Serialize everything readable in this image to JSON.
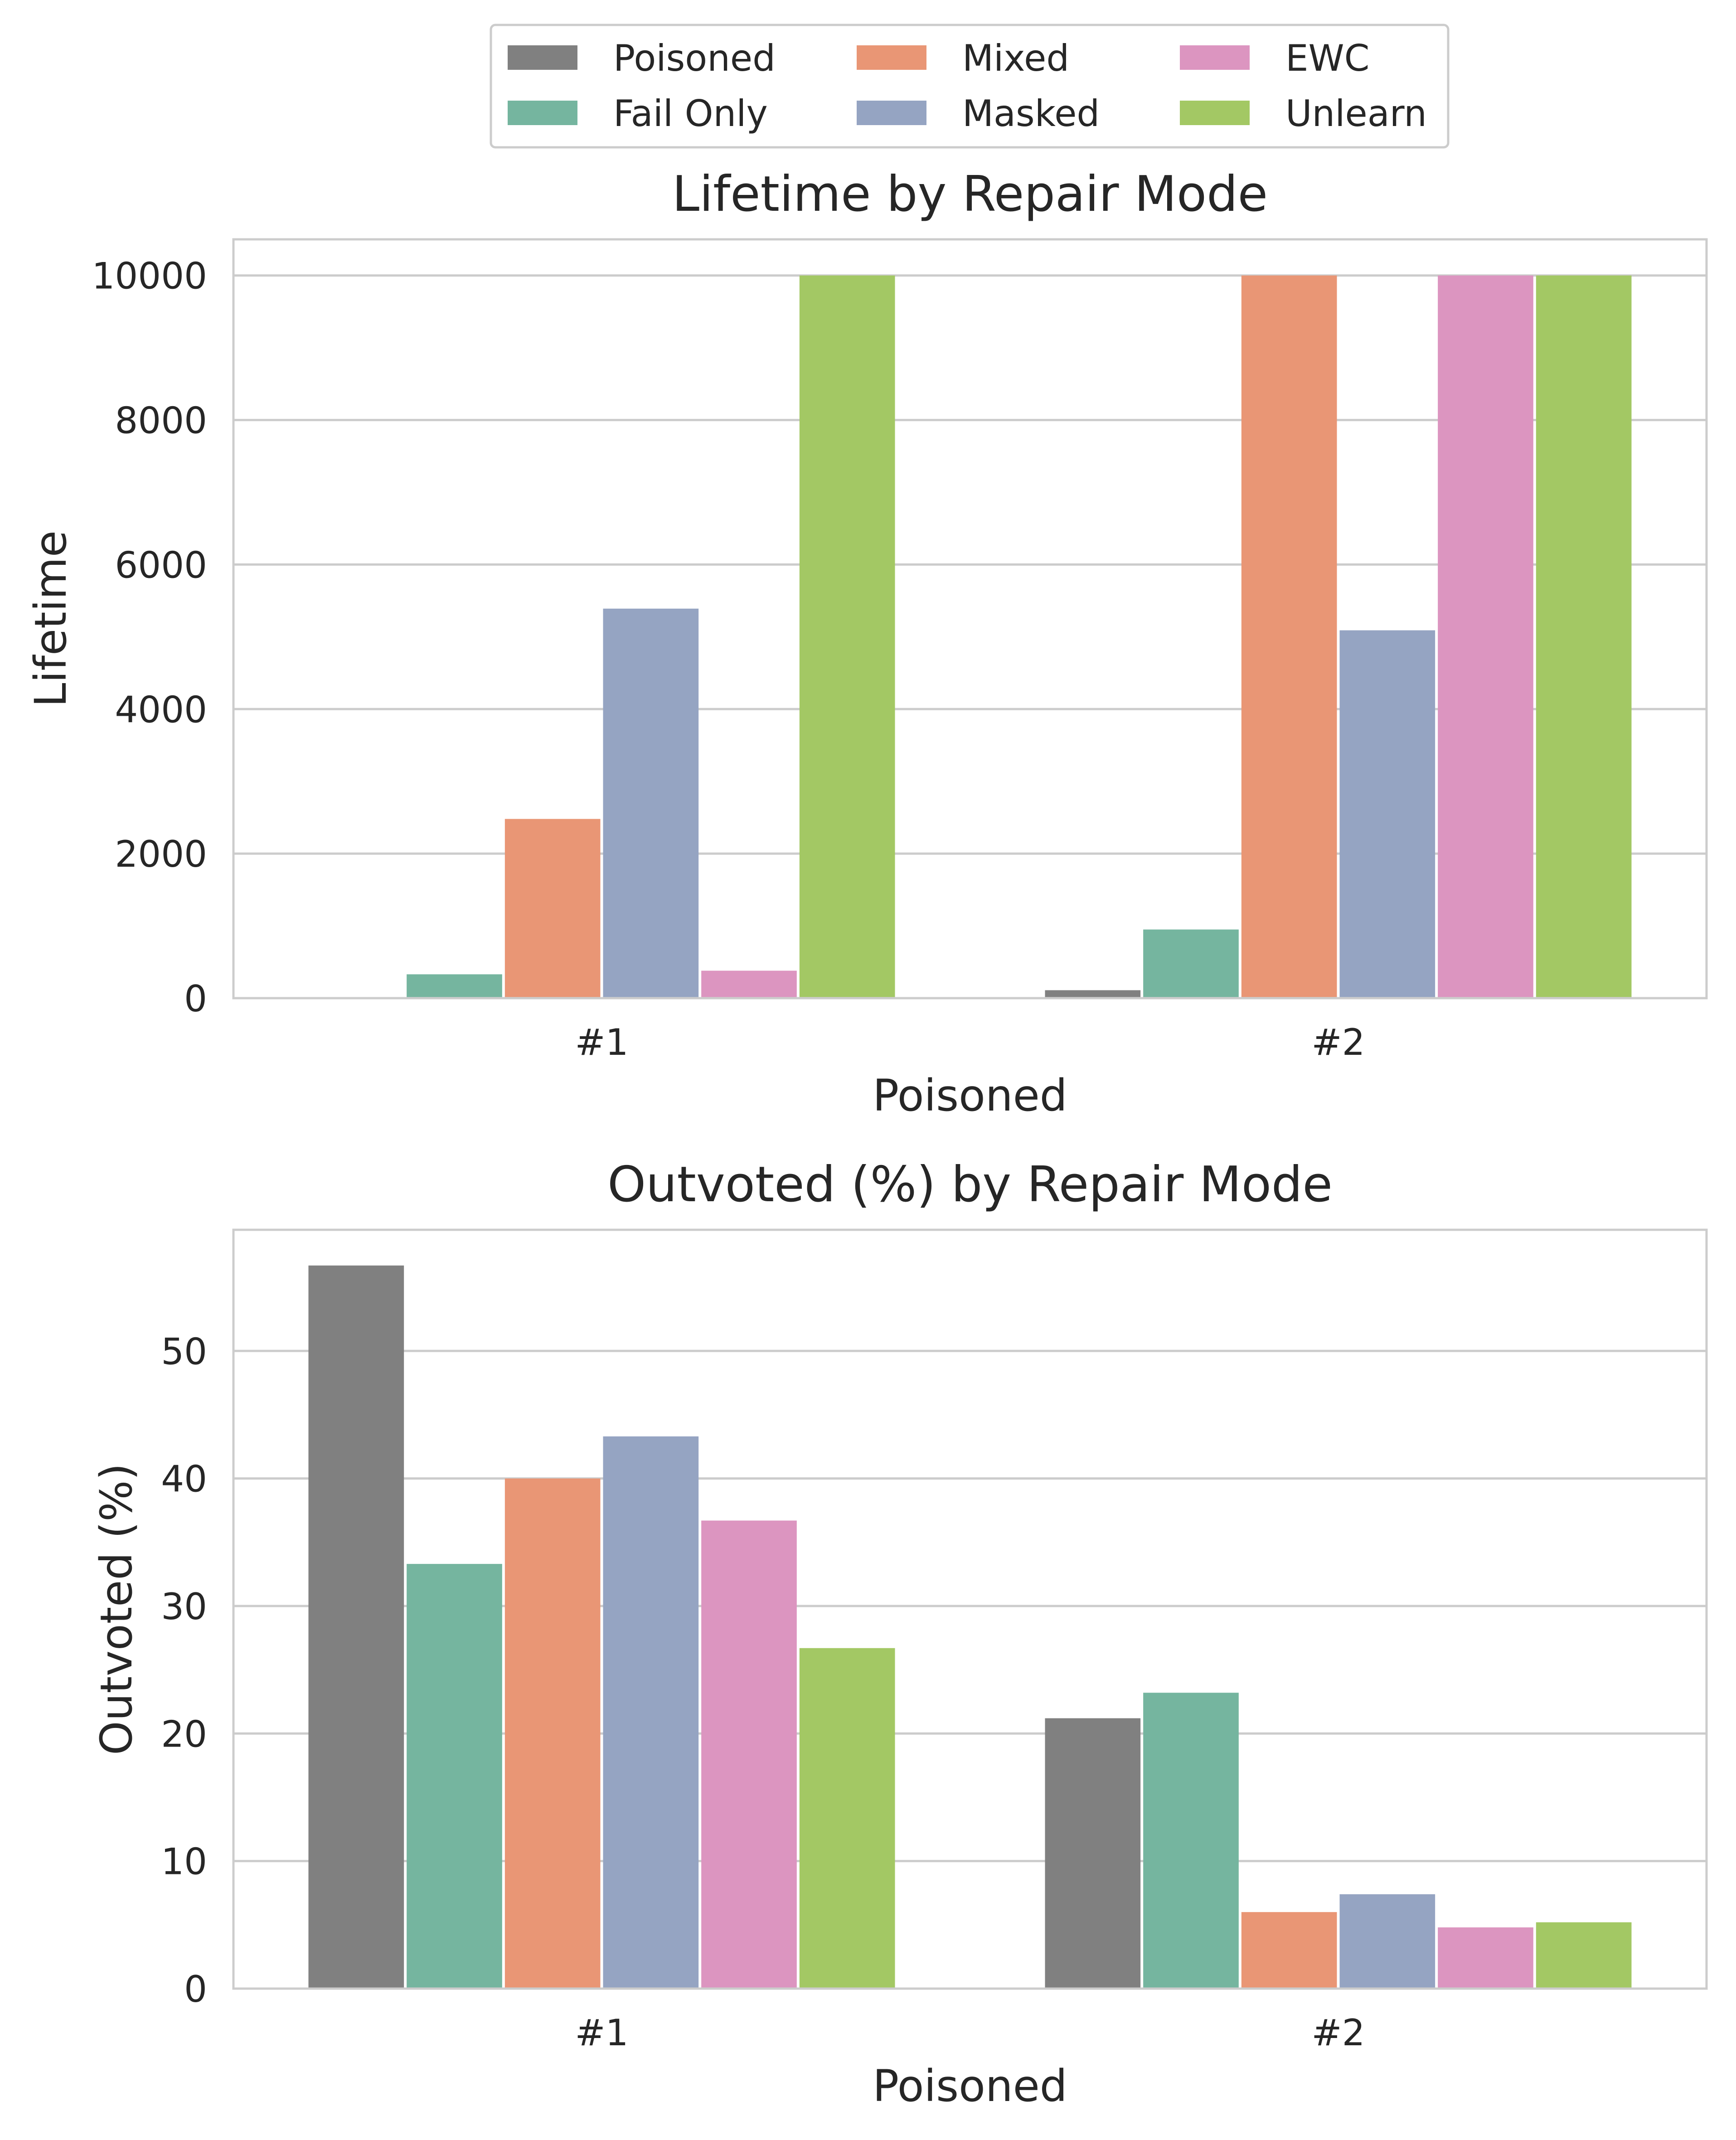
{
  "legend": {
    "entries": [
      {
        "name": "Poisoned",
        "color": "#808080"
      },
      {
        "name": "Fail Only",
        "color": "#75b59f"
      },
      {
        "name": "Mixed",
        "color": "#e99675"
      },
      {
        "name": "Masked",
        "color": "#95a4c2"
      },
      {
        "name": "EWC",
        "color": "#dc95c0"
      },
      {
        "name": "Unlearn",
        "color": "#a3c864"
      }
    ]
  },
  "chart_data": [
    {
      "type": "bar",
      "title": "Lifetime by Repair Mode",
      "xlabel": "Poisoned",
      "ylabel": "Lifetime",
      "categories": [
        "#1",
        "#2"
      ],
      "ylim": [
        0,
        10500
      ],
      "yticks": [
        0,
        2000,
        4000,
        6000,
        8000,
        10000
      ],
      "ytick_labels": [
        "0",
        "2000",
        "4000",
        "6000",
        "8000",
        "10000"
      ],
      "grid": true,
      "series": [
        {
          "name": "Poisoned",
          "values": [
            0,
            110
          ]
        },
        {
          "name": "Fail Only",
          "values": [
            330,
            950
          ]
        },
        {
          "name": "Mixed",
          "values": [
            2480,
            10000
          ]
        },
        {
          "name": "Masked",
          "values": [
            5390,
            5090
          ]
        },
        {
          "name": "EWC",
          "values": [
            380,
            10000
          ]
        },
        {
          "name": "Unlearn",
          "values": [
            10000,
            10000
          ]
        }
      ]
    },
    {
      "type": "bar",
      "title": "Outvoted (%) by Repair Mode",
      "xlabel": "Poisoned",
      "ylabel": "Outvoted (%)",
      "categories": [
        "#1",
        "#2"
      ],
      "ylim": [
        0,
        59.5
      ],
      "yticks": [
        0,
        10,
        20,
        30,
        40,
        50
      ],
      "ytick_labels": [
        "0",
        "10",
        "20",
        "30",
        "40",
        "50"
      ],
      "grid": true,
      "series": [
        {
          "name": "Poisoned",
          "values": [
            56.7,
            21.2
          ]
        },
        {
          "name": "Fail Only",
          "values": [
            33.3,
            23.2
          ]
        },
        {
          "name": "Mixed",
          "values": [
            40.0,
            6.0
          ]
        },
        {
          "name": "Masked",
          "values": [
            43.3,
            7.4
          ]
        },
        {
          "name": "EWC",
          "values": [
            36.7,
            4.8
          ]
        },
        {
          "name": "Unlearn",
          "values": [
            26.7,
            5.2
          ]
        }
      ]
    }
  ]
}
